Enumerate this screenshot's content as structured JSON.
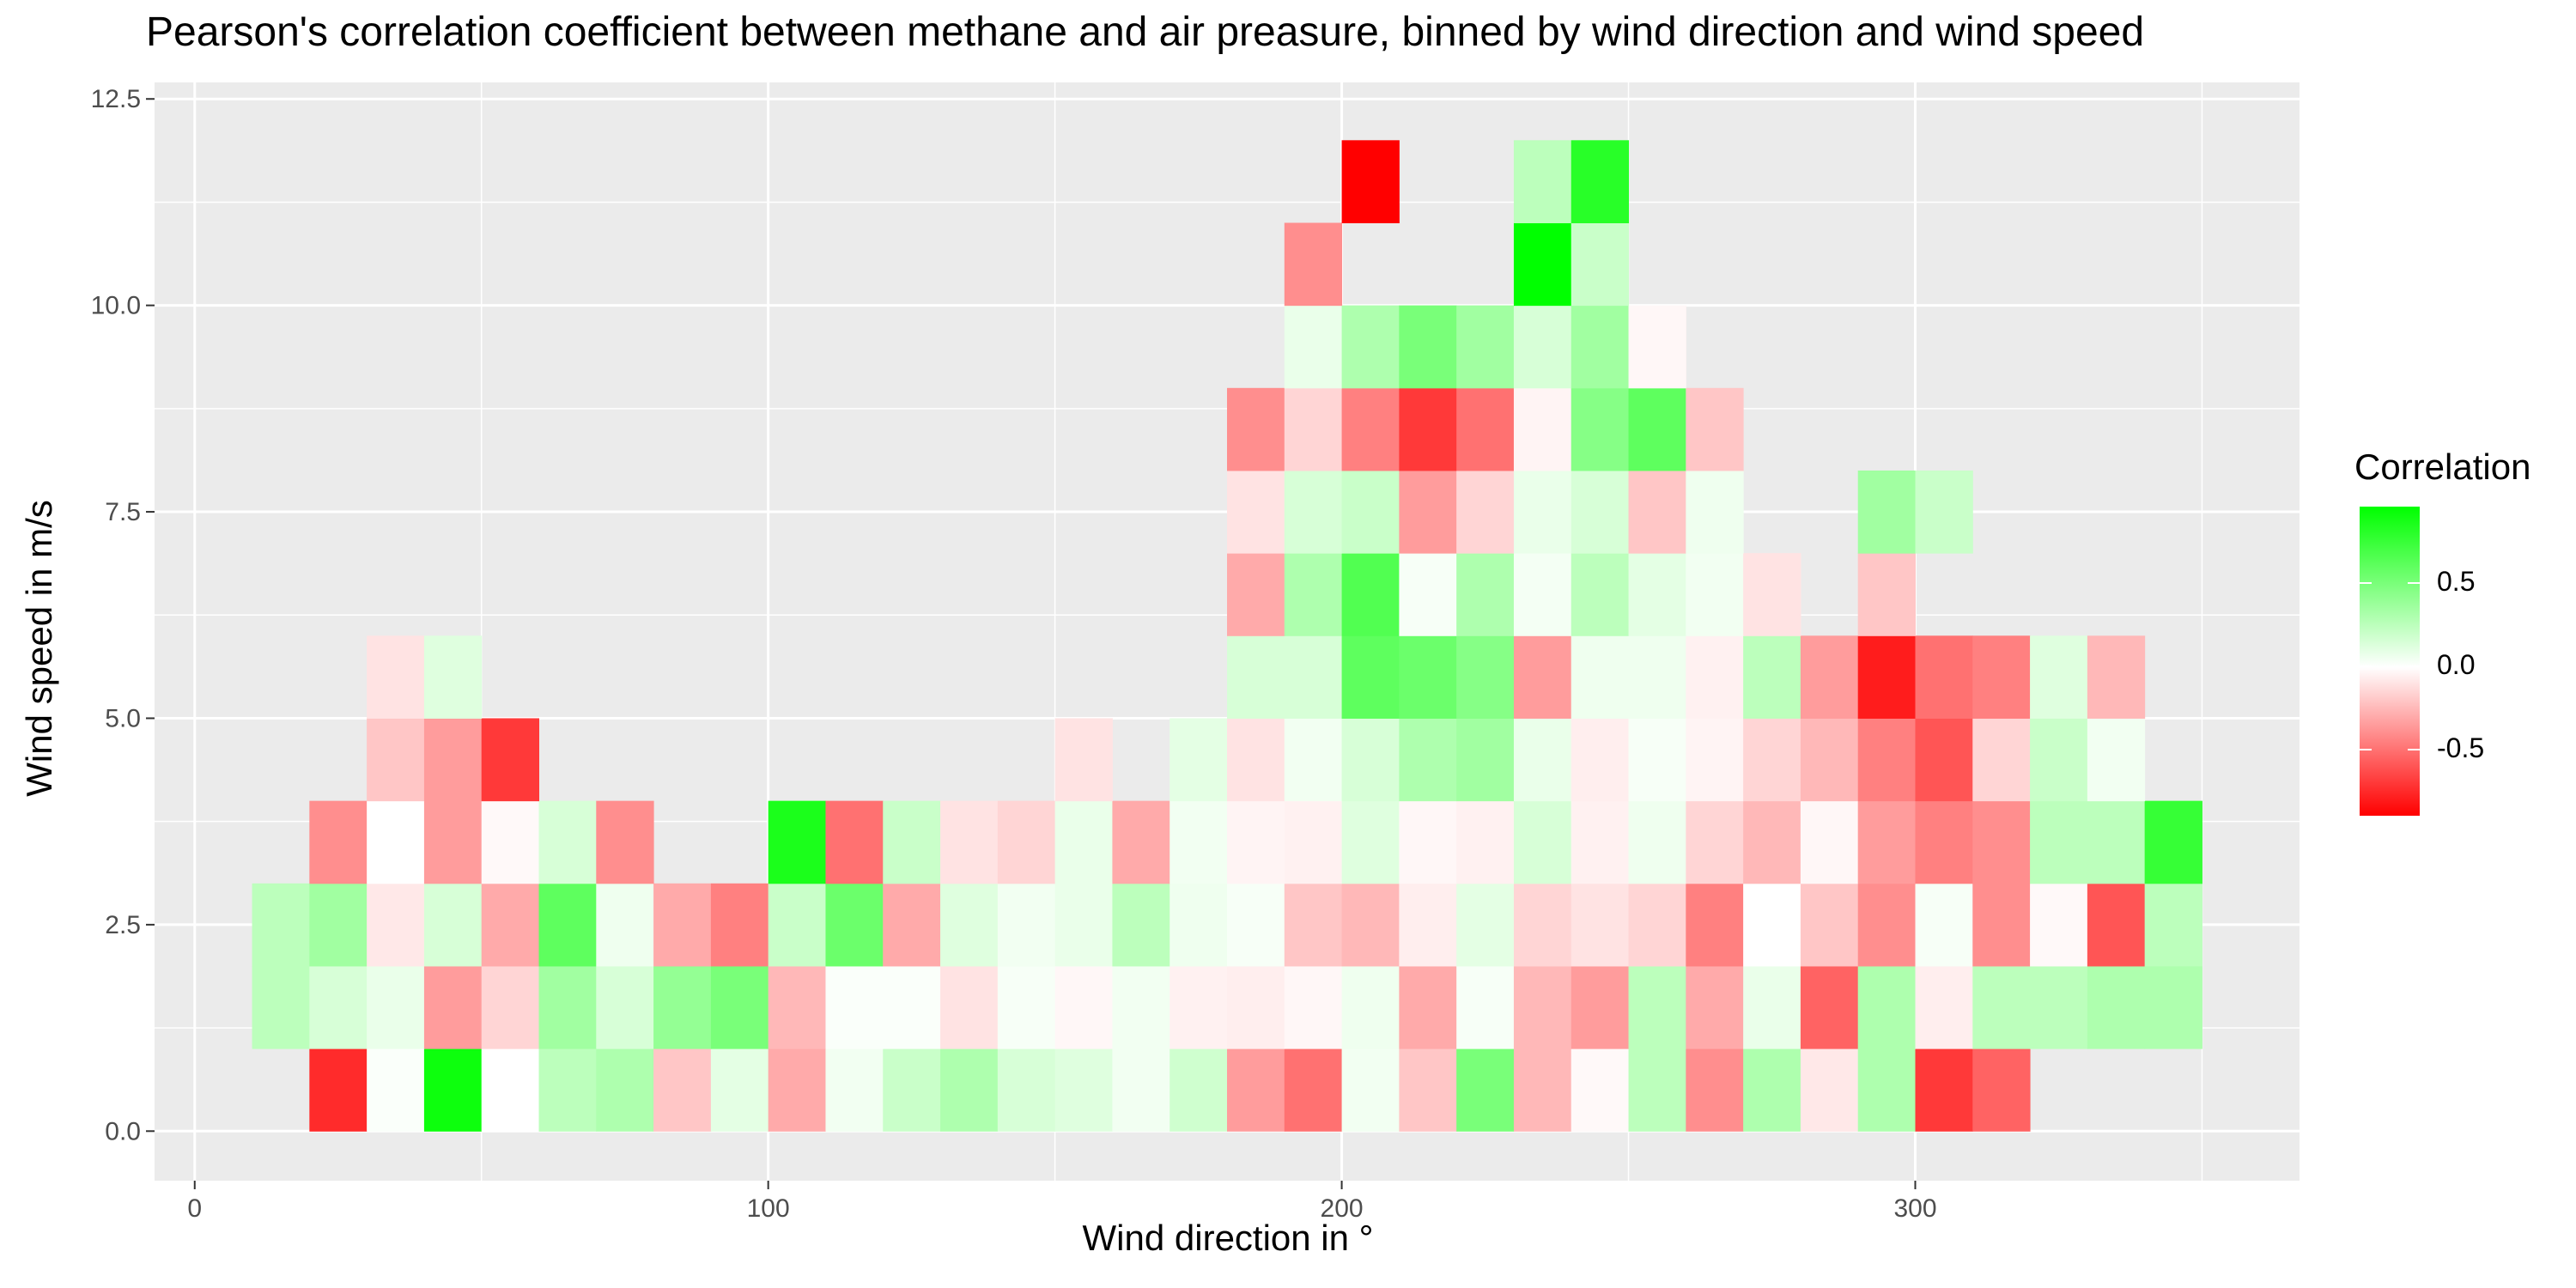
{
  "chart_data": {
    "type": "heatmap",
    "title": "Pearson's correlation coefficient between methane and air preasure, binned by wind direction and wind speed",
    "xlabel": "Wind direction in °",
    "ylabel": "Wind speed in m/s",
    "x_ticks": [
      "0",
      "100",
      "200",
      "300"
    ],
    "y_ticks": [
      "0.0",
      "2.5",
      "5.0",
      "7.5",
      "10.0",
      "12.5"
    ],
    "x_tick_values": [
      0,
      100,
      200,
      300
    ],
    "y_tick_values": [
      0,
      2.5,
      5,
      7.5,
      10,
      12.5
    ],
    "xlim": [
      -7,
      367
    ],
    "ylim": [
      -0.6,
      12.7
    ],
    "bin_width_deg": 10,
    "bin_height_ms": 1,
    "grid": true,
    "legend": {
      "title": "Correlation",
      "position": "right",
      "ticks": [
        "0.5",
        "0.0",
        "-0.5"
      ],
      "tick_values": [
        0.5,
        0.0,
        -0.5
      ],
      "range": [
        -0.9,
        0.95
      ],
      "colors": {
        "low": "#ff0000",
        "mid": "#ffffff",
        "high": "#00ff00"
      }
    },
    "rows": [
      {
        "y": 0,
        "cells": [
          [
            20,
            -0.75
          ],
          [
            30,
            0.02
          ],
          [
            40,
            0.9
          ],
          [
            50,
            0.0
          ],
          [
            60,
            0.25
          ],
          [
            70,
            0.3
          ],
          [
            80,
            -0.2
          ],
          [
            90,
            0.1
          ],
          [
            100,
            -0.3
          ],
          [
            110,
            0.05
          ],
          [
            120,
            0.2
          ],
          [
            130,
            0.3
          ],
          [
            140,
            0.15
          ],
          [
            150,
            0.12
          ],
          [
            160,
            0.05
          ],
          [
            170,
            0.18
          ],
          [
            180,
            -0.35
          ],
          [
            190,
            -0.5
          ],
          [
            200,
            0.05
          ],
          [
            210,
            -0.2
          ],
          [
            220,
            0.5
          ],
          [
            230,
            -0.25
          ],
          [
            240,
            -0.02
          ],
          [
            250,
            0.25
          ],
          [
            260,
            -0.4
          ],
          [
            270,
            0.3
          ],
          [
            280,
            -0.08
          ],
          [
            290,
            0.3
          ],
          [
            300,
            -0.7
          ],
          [
            310,
            -0.55
          ]
        ]
      },
      {
        "y": 1,
        "cells": [
          [
            10,
            0.25
          ],
          [
            20,
            0.15
          ],
          [
            30,
            0.08
          ],
          [
            40,
            -0.35
          ],
          [
            50,
            -0.15
          ],
          [
            60,
            0.35
          ],
          [
            70,
            0.15
          ],
          [
            80,
            0.4
          ],
          [
            90,
            0.5
          ],
          [
            100,
            -0.25
          ],
          [
            110,
            0.02
          ],
          [
            120,
            0.02
          ],
          [
            130,
            -0.1
          ],
          [
            140,
            0.03
          ],
          [
            150,
            -0.03
          ],
          [
            160,
            0.05
          ],
          [
            170,
            -0.05
          ],
          [
            180,
            -0.06
          ],
          [
            190,
            -0.03
          ],
          [
            200,
            0.06
          ],
          [
            210,
            -0.3
          ],
          [
            220,
            0.03
          ],
          [
            230,
            -0.25
          ],
          [
            240,
            -0.35
          ],
          [
            250,
            0.25
          ],
          [
            260,
            -0.3
          ],
          [
            270,
            0.08
          ],
          [
            280,
            -0.55
          ],
          [
            290,
            0.3
          ],
          [
            300,
            -0.06
          ],
          [
            310,
            0.25
          ],
          [
            320,
            0.25
          ],
          [
            330,
            0.3
          ],
          [
            340,
            0.3
          ]
        ]
      },
      {
        "y": 2,
        "cells": [
          [
            10,
            0.25
          ],
          [
            20,
            0.35
          ],
          [
            30,
            -0.08
          ],
          [
            40,
            0.15
          ],
          [
            50,
            -0.3
          ],
          [
            60,
            0.6
          ],
          [
            70,
            0.06
          ],
          [
            80,
            -0.3
          ],
          [
            90,
            -0.45
          ],
          [
            100,
            0.2
          ],
          [
            110,
            0.55
          ],
          [
            120,
            -0.3
          ],
          [
            130,
            0.12
          ],
          [
            140,
            0.05
          ],
          [
            150,
            0.08
          ],
          [
            160,
            0.25
          ],
          [
            170,
            0.06
          ],
          [
            180,
            0.03
          ],
          [
            190,
            -0.2
          ],
          [
            200,
            -0.25
          ],
          [
            210,
            -0.06
          ],
          [
            220,
            0.1
          ],
          [
            230,
            -0.15
          ],
          [
            240,
            -0.1
          ],
          [
            250,
            -0.15
          ],
          [
            260,
            -0.45
          ],
          [
            270,
            0.0
          ],
          [
            280,
            -0.2
          ],
          [
            290,
            -0.4
          ],
          [
            300,
            0.03
          ],
          [
            310,
            -0.4
          ],
          [
            320,
            -0.02
          ],
          [
            330,
            -0.6
          ],
          [
            340,
            0.25
          ]
        ]
      },
      {
        "y": 3,
        "cells": [
          [
            20,
            -0.4
          ],
          [
            30,
            0.0
          ],
          [
            40,
            -0.35
          ],
          [
            50,
            -0.02
          ],
          [
            60,
            0.15
          ],
          [
            70,
            -0.4
          ],
          [
            100,
            0.85
          ],
          [
            110,
            -0.5
          ],
          [
            120,
            0.2
          ],
          [
            130,
            -0.1
          ],
          [
            140,
            -0.15
          ],
          [
            150,
            0.08
          ],
          [
            160,
            -0.3
          ],
          [
            170,
            0.05
          ],
          [
            180,
            -0.04
          ],
          [
            190,
            -0.05
          ],
          [
            200,
            0.12
          ],
          [
            210,
            -0.03
          ],
          [
            220,
            -0.05
          ],
          [
            230,
            0.15
          ],
          [
            240,
            -0.05
          ],
          [
            250,
            0.06
          ],
          [
            260,
            -0.15
          ],
          [
            270,
            -0.25
          ],
          [
            280,
            -0.03
          ],
          [
            290,
            -0.35
          ],
          [
            300,
            -0.45
          ],
          [
            310,
            -0.4
          ],
          [
            320,
            0.25
          ],
          [
            330,
            0.25
          ],
          [
            340,
            0.75
          ]
        ]
      },
      {
        "y": 4,
        "cells": [
          [
            30,
            -0.2
          ],
          [
            40,
            -0.35
          ],
          [
            50,
            -0.7
          ],
          [
            150,
            -0.1
          ],
          [
            170,
            0.1
          ],
          [
            180,
            -0.1
          ],
          [
            190,
            0.05
          ],
          [
            200,
            0.15
          ],
          [
            210,
            0.3
          ],
          [
            220,
            0.35
          ],
          [
            230,
            0.08
          ],
          [
            240,
            -0.06
          ],
          [
            250,
            0.03
          ],
          [
            260,
            -0.04
          ],
          [
            270,
            -0.15
          ],
          [
            280,
            -0.25
          ],
          [
            290,
            -0.45
          ],
          [
            300,
            -0.6
          ],
          [
            310,
            -0.15
          ],
          [
            320,
            0.2
          ],
          [
            330,
            0.05
          ]
        ]
      },
      {
        "y": 5,
        "cells": [
          [
            30,
            -0.1
          ],
          [
            40,
            0.12
          ],
          [
            180,
            0.15
          ],
          [
            190,
            0.15
          ],
          [
            200,
            0.6
          ],
          [
            210,
            0.55
          ],
          [
            220,
            0.45
          ],
          [
            230,
            -0.35
          ],
          [
            240,
            0.06
          ],
          [
            250,
            0.06
          ],
          [
            260,
            -0.05
          ],
          [
            270,
            0.25
          ],
          [
            280,
            -0.35
          ],
          [
            290,
            -0.8
          ],
          [
            300,
            -0.5
          ],
          [
            310,
            -0.45
          ],
          [
            320,
            0.12
          ],
          [
            330,
            -0.25
          ]
        ]
      },
      {
        "y": 6,
        "cells": [
          [
            180,
            -0.3
          ],
          [
            190,
            0.3
          ],
          [
            200,
            0.65
          ],
          [
            210,
            0.03
          ],
          [
            220,
            0.3
          ],
          [
            230,
            0.04
          ],
          [
            240,
            0.25
          ],
          [
            250,
            0.1
          ],
          [
            260,
            0.05
          ],
          [
            270,
            -0.1
          ],
          [
            290,
            -0.2
          ]
        ]
      },
      {
        "y": 7,
        "cells": [
          [
            180,
            -0.1
          ],
          [
            190,
            0.15
          ],
          [
            200,
            0.2
          ],
          [
            210,
            -0.35
          ],
          [
            220,
            -0.15
          ],
          [
            230,
            0.08
          ],
          [
            240,
            0.15
          ],
          [
            250,
            -0.2
          ],
          [
            260,
            0.06
          ],
          [
            290,
            0.35
          ],
          [
            300,
            0.2
          ]
        ]
      },
      {
        "y": 8,
        "cells": [
          [
            180,
            -0.4
          ],
          [
            190,
            -0.15
          ],
          [
            200,
            -0.45
          ],
          [
            210,
            -0.7
          ],
          [
            220,
            -0.5
          ],
          [
            230,
            -0.04
          ],
          [
            240,
            0.45
          ],
          [
            250,
            0.6
          ],
          [
            260,
            -0.2
          ]
        ]
      },
      {
        "y": 9,
        "cells": [
          [
            190,
            0.08
          ],
          [
            200,
            0.3
          ],
          [
            210,
            0.5
          ],
          [
            220,
            0.35
          ],
          [
            230,
            0.15
          ],
          [
            240,
            0.35
          ],
          [
            250,
            -0.03
          ]
        ]
      },
      {
        "y": 10,
        "cells": [
          [
            190,
            -0.4
          ],
          [
            230,
            0.95
          ],
          [
            240,
            0.2
          ]
        ]
      },
      {
        "y": 11,
        "cells": [
          [
            200,
            -0.9
          ],
          [
            230,
            0.25
          ],
          [
            240,
            0.8
          ]
        ]
      }
    ]
  }
}
